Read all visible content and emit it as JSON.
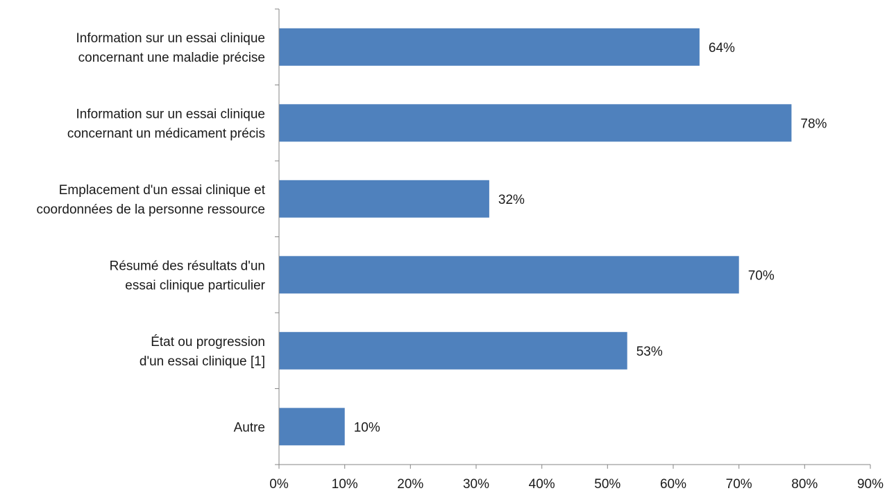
{
  "chart_data": {
    "type": "bar",
    "orientation": "horizontal",
    "categories": [
      [
        "Information sur un essai clinique",
        "concernant une maladie précise"
      ],
      [
        "Information sur un essai clinique",
        "concernant un médicament précis"
      ],
      [
        "Emplacement d'un essai clinique et",
        "coordonnées de la personne ressource"
      ],
      [
        "Résumé des résultats d'un",
        "essai clinique particulier"
      ],
      [
        "État ou progression",
        "d'un essai clinique [1]"
      ],
      [
        "Autre"
      ]
    ],
    "values": [
      64,
      78,
      32,
      70,
      53,
      10
    ],
    "data_labels": [
      "64%",
      "78%",
      "32%",
      "70%",
      "53%",
      "10%"
    ],
    "x_ticks": [
      0,
      10,
      20,
      30,
      40,
      50,
      60,
      70,
      80,
      90
    ],
    "x_tick_labels": [
      "0%",
      "10%",
      "20%",
      "30%",
      "40%",
      "50%",
      "60%",
      "70%",
      "80%",
      "90%"
    ],
    "xlim": [
      0,
      90
    ],
    "bar_color": "#4f81bd",
    "axis_color": "#868686",
    "grid": false,
    "legend": "none",
    "title": "",
    "xlabel": "",
    "ylabel": ""
  }
}
